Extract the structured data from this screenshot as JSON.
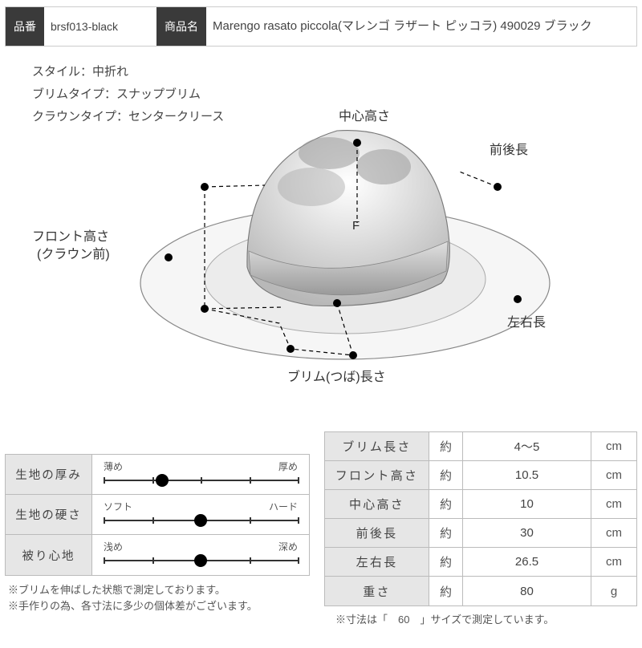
{
  "header": {
    "sku_label": "品番",
    "sku_value": "brsf013-black",
    "name_label": "商品名",
    "name_value": "Marengo rasato piccola(マレンゴ ラザート ピッコラ) 490029 ブラック"
  },
  "specs": {
    "style": "スタイル：中折れ",
    "brim_type": "ブリムタイプ：スナップブリム",
    "crown_type": "クラウンタイプ：センタークリース"
  },
  "diagram_labels": {
    "center_height": "中心高さ",
    "front_back": "前後長",
    "front_height_1": "フロント高さ",
    "front_height_2": "(クラウン前)",
    "left_right": "左右長",
    "brim_length": "ブリム(つば)長さ"
  },
  "sliders": [
    {
      "name": "生地の厚み",
      "left": "薄め",
      "right": "厚め",
      "value": 0.3
    },
    {
      "name": "生地の硬さ",
      "left": "ソフト",
      "right": "ハード",
      "value": 0.5
    },
    {
      "name": "被り心地",
      "left": "浅め",
      "right": "深め",
      "value": 0.5
    }
  ],
  "slider_ticks": [
    0,
    0.25,
    0.5,
    0.75,
    1.0
  ],
  "dimensions": {
    "approx": "約",
    "rows": [
      {
        "name": "ブリム長さ",
        "value": "4～5",
        "unit": "cm"
      },
      {
        "name": "フロント高さ",
        "value": "10.5",
        "unit": "cm"
      },
      {
        "name": "中心高さ",
        "value": "10",
        "unit": "cm"
      },
      {
        "name": "前後長",
        "value": "30",
        "unit": "cm"
      },
      {
        "name": "左右長",
        "value": "26.5",
        "unit": "cm"
      },
      {
        "name": "重さ",
        "value": "80",
        "unit": "g"
      }
    ]
  },
  "notes": {
    "left1": "※ブリムを伸ばした状態で測定しております。",
    "left2": "※手作りの為、各寸法に多少の個体差がございます。",
    "right": "※寸法は「　60　」サイズで測定しています。"
  },
  "colors": {
    "header_bg": "#3a3a3a",
    "cell_bg": "#e6e6e6",
    "border": "#bbbbbb",
    "text": "#444444",
    "hat_fill": "#f4f4f4",
    "hat_band": "#cfcfcf",
    "hat_shadow": "#9a9a9a"
  }
}
